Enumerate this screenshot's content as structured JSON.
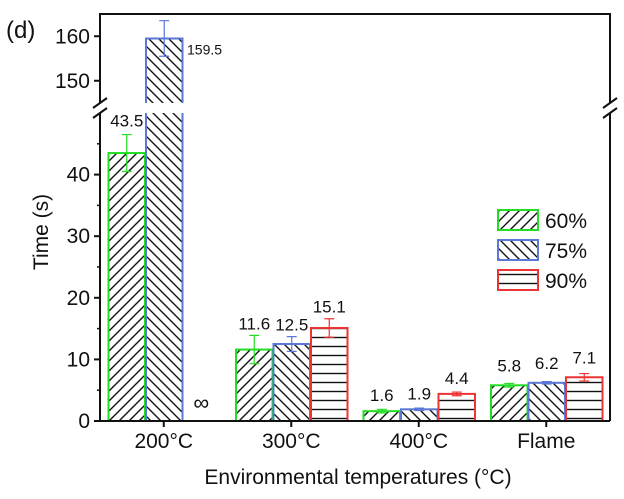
{
  "chart_data": {
    "type": "bar",
    "panel_label": "(d)",
    "xlabel": "Environmental temperatures (°C)",
    "ylabel": "Time (s)",
    "categories": [
      "200°C",
      "300°C",
      "400°C",
      "Flame"
    ],
    "y_axis": {
      "broken": true,
      "lower_range": [
        0,
        50
      ],
      "upper_range": [
        145,
        165
      ],
      "lower_ticks": [
        0,
        10,
        20,
        30,
        40
      ],
      "upper_ticks": [
        150,
        160
      ]
    },
    "series": [
      {
        "name": "60%",
        "color": "#22dd22",
        "hatch": "forward-diagonal",
        "values": [
          43.5,
          11.6,
          1.6,
          5.8
        ],
        "errors": [
          3.0,
          2.3,
          0.3,
          0.3
        ],
        "labels": [
          "43.5",
          "11.6",
          "1.6",
          "5.8"
        ]
      },
      {
        "name": "75%",
        "color": "#5b78d6",
        "hatch": "back-diagonal",
        "values": [
          159.5,
          12.5,
          1.9,
          6.2
        ],
        "errors": [
          4.0,
          1.2,
          0.2,
          0.2
        ],
        "labels": [
          "159.5",
          "12.5",
          "1.9",
          "6.2"
        ]
      },
      {
        "name": "90%",
        "color": "#ee3333",
        "hatch": "horizontal",
        "values": [
          null,
          15.1,
          4.4,
          7.1
        ],
        "errors": [
          null,
          1.5,
          0.3,
          0.6
        ],
        "labels": [
          "",
          "15.1",
          "4.4",
          "7.1"
        ]
      }
    ],
    "annotations": [
      {
        "text": "∞",
        "category": "200°C",
        "series": "90%",
        "meaning": "did not ignite / infinite time"
      }
    ],
    "legend_position": "right"
  }
}
